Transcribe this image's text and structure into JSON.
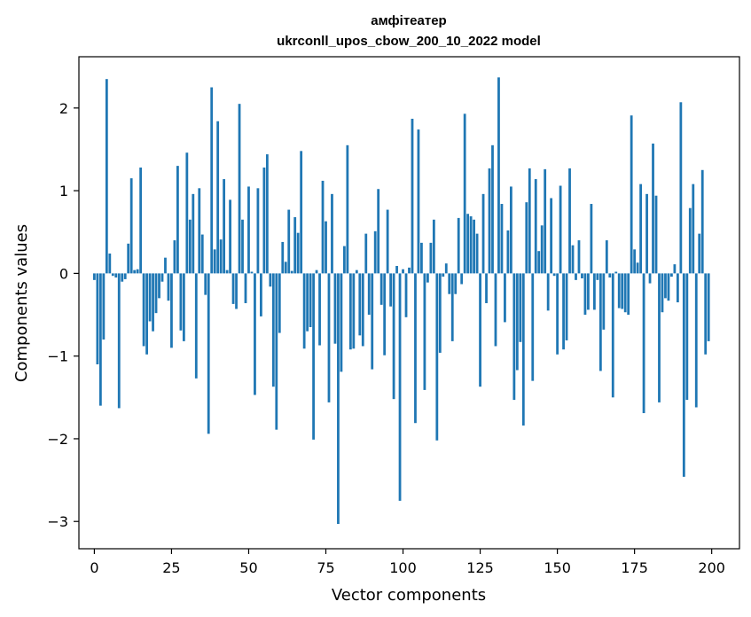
{
  "chart_data": {
    "type": "bar",
    "title": "амфітеатер",
    "subtitle": "ukrconll_upos_cbow_200_10_2022 model",
    "xlabel": "Vector components",
    "ylabel": "Components values",
    "xlim": [
      -5,
      209
    ],
    "ylim": [
      -3.33,
      2.62
    ],
    "xticks": [
      0,
      25,
      50,
      75,
      100,
      125,
      150,
      175,
      200
    ],
    "yticks": [
      -3,
      -2,
      -1,
      0,
      1,
      2
    ],
    "ytick_labels": [
      "−3",
      "−2",
      "−1",
      "0",
      "1",
      "2"
    ],
    "bar_color": "#1f77b4",
    "grid": false,
    "x": [
      0,
      1,
      2,
      3,
      4,
      5,
      6,
      7,
      8,
      9,
      10,
      11,
      12,
      13,
      14,
      15,
      16,
      17,
      18,
      19,
      20,
      21,
      22,
      23,
      24,
      25,
      26,
      27,
      28,
      29,
      30,
      31,
      32,
      33,
      34,
      35,
      36,
      37,
      38,
      39,
      40,
      41,
      42,
      43,
      44,
      45,
      46,
      47,
      48,
      49,
      50,
      51,
      52,
      53,
      54,
      55,
      56,
      57,
      58,
      59,
      60,
      61,
      62,
      63,
      64,
      65,
      66,
      67,
      68,
      69,
      70,
      71,
      72,
      73,
      74,
      75,
      76,
      77,
      78,
      79,
      80,
      81,
      82,
      83,
      84,
      85,
      86,
      87,
      88,
      89,
      90,
      91,
      92,
      93,
      94,
      95,
      96,
      97,
      98,
      99,
      100,
      101,
      102,
      103,
      104,
      105,
      106,
      107,
      108,
      109,
      110,
      111,
      112,
      113,
      114,
      115,
      116,
      117,
      118,
      119,
      120,
      121,
      122,
      123,
      124,
      125,
      126,
      127,
      128,
      129,
      130,
      131,
      132,
      133,
      134,
      135,
      136,
      137,
      138,
      139,
      140,
      141,
      142,
      143,
      144,
      145,
      146,
      147,
      148,
      149,
      150,
      151,
      152,
      153,
      154,
      155,
      156,
      157,
      158,
      159,
      160,
      161,
      162,
      163,
      164,
      165,
      166,
      167,
      168,
      169,
      170,
      171,
      172,
      173,
      174,
      175,
      176,
      177,
      178,
      179,
      180,
      181,
      182,
      183,
      184,
      185,
      186,
      187,
      188,
      189,
      190,
      191,
      192,
      193,
      194,
      195,
      196,
      197,
      198,
      199
    ],
    "values": [
      -0.08,
      -1.1,
      -1.6,
      -0.8,
      2.35,
      0.24,
      -0.03,
      -0.05,
      -1.63,
      -0.1,
      -0.07,
      0.36,
      1.15,
      0.04,
      0.05,
      1.28,
      -0.88,
      -0.98,
      -0.58,
      -0.7,
      -0.48,
      -0.3,
      -0.1,
      0.19,
      -0.33,
      -0.9,
      0.4,
      1.3,
      -0.69,
      -0.82,
      1.46,
      0.65,
      0.96,
      -1.27,
      1.03,
      0.47,
      -0.26,
      -1.94,
      2.25,
      0.29,
      1.84,
      0.41,
      1.14,
      0.04,
      0.89,
      -0.37,
      -0.43,
      2.05,
      0.65,
      -0.36,
      1.05,
      0.02,
      -1.47,
      1.03,
      -0.52,
      1.28,
      1.44,
      -0.16,
      -1.37,
      -1.89,
      -0.72,
      0.38,
      0.14,
      0.77,
      0.03,
      0.68,
      0.49,
      1.48,
      -0.91,
      -0.7,
      -0.65,
      -2.01,
      0.04,
      -0.87,
      1.12,
      0.63,
      -1.56,
      0.96,
      -0.85,
      -3.03,
      -1.19,
      0.33,
      1.55,
      -0.92,
      -0.91,
      0.04,
      -0.75,
      -0.88,
      0.48,
      -0.5,
      -1.16,
      0.51,
      1.02,
      -0.38,
      -0.99,
      0.77,
      -0.4,
      -1.52,
      0.09,
      -2.75,
      0.05,
      -0.53,
      0.07,
      1.87,
      -1.81,
      1.74,
      0.37,
      -1.41,
      -0.11,
      0.37,
      0.65,
      -2.02,
      -0.96,
      -0.04,
      0.12,
      -0.25,
      -0.82,
      -0.25,
      0.67,
      -0.13,
      1.93,
      0.72,
      0.69,
      0.65,
      0.48,
      -1.37,
      0.96,
      -0.36,
      1.27,
      1.55,
      -0.88,
      2.37,
      0.84,
      -0.59,
      0.52,
      1.05,
      -1.53,
      -1.17,
      -0.83,
      -1.84,
      0.86,
      1.27,
      -1.3,
      1.14,
      0.27,
      0.58,
      1.26,
      -0.45,
      0.91,
      -0.03,
      -0.98,
      1.06,
      -0.92,
      -0.81,
      1.27,
      0.34,
      -0.08,
      0.4,
      -0.06,
      -0.5,
      -0.44,
      0.84,
      -0.44,
      -0.08,
      -1.18,
      -0.68,
      0.4,
      -0.05,
      -1.5,
      0.02,
      -0.42,
      -0.43,
      -0.47,
      -0.5,
      1.91,
      0.29,
      0.13,
      1.08,
      -1.69,
      0.96,
      -0.12,
      1.57,
      0.94,
      -1.56,
      -0.47,
      -0.3,
      -0.33,
      -0.04,
      0.11,
      -0.35,
      2.07,
      -2.46,
      -1.53,
      0.79,
      1.08,
      -1.62,
      0.48,
      1.25,
      -0.98,
      -0.82
    ]
  }
}
